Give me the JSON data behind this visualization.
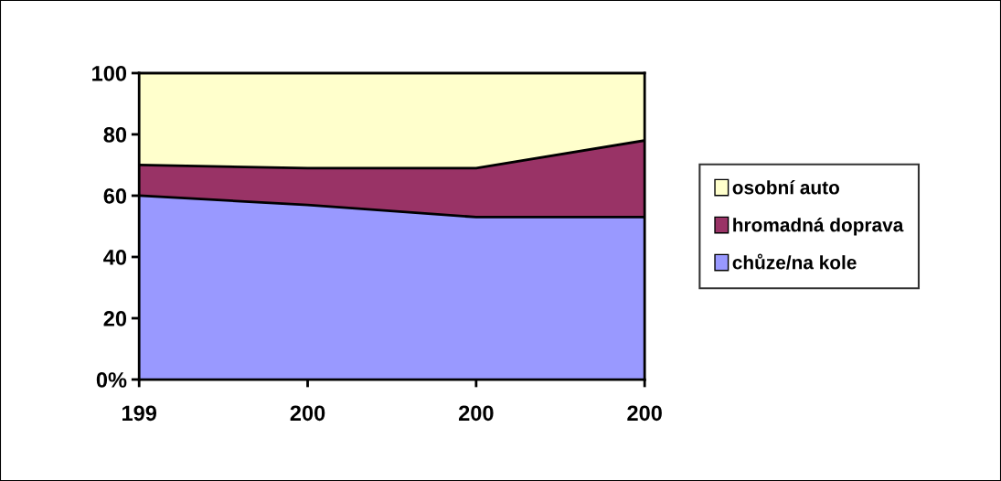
{
  "chart_data": {
    "type": "area",
    "stacked": true,
    "categories": [
      "199",
      "200",
      "200",
      "200"
    ],
    "series": [
      {
        "name": "chůze/na kole",
        "color": "#9999ff",
        "values": [
          60,
          57,
          53,
          53
        ]
      },
      {
        "name": "hromadná doprava",
        "color": "#993366",
        "values": [
          10,
          12,
          16,
          25
        ]
      },
      {
        "name": "osobní auto",
        "color": "#ffffcc",
        "values": [
          30,
          31,
          31,
          22
        ]
      }
    ],
    "ylim": [
      0,
      100
    ],
    "yticks": [
      {
        "value": 0,
        "label": "0%"
      },
      {
        "value": 20,
        "label": "20"
      },
      {
        "value": 40,
        "label": "40"
      },
      {
        "value": 60,
        "label": "60"
      },
      {
        "value": 80,
        "label": "80"
      },
      {
        "value": 100,
        "label": "100"
      }
    ],
    "grid": false,
    "legend": "right"
  }
}
